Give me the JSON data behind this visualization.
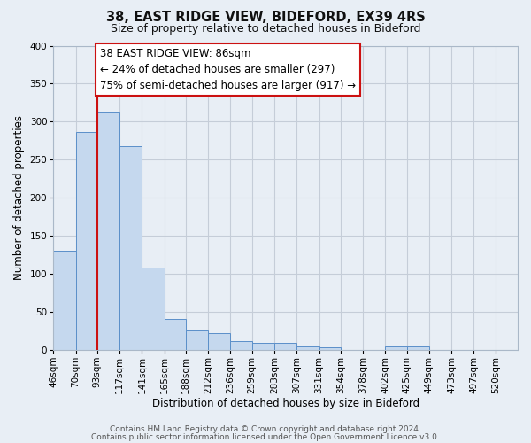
{
  "title": "38, EAST RIDGE VIEW, BIDEFORD, EX39 4RS",
  "subtitle": "Size of property relative to detached houses in Bideford",
  "xlabel": "Distribution of detached houses by size in Bideford",
  "ylabel": "Number of detached properties",
  "bar_labels": [
    "46sqm",
    "70sqm",
    "93sqm",
    "117sqm",
    "141sqm",
    "165sqm",
    "188sqm",
    "212sqm",
    "236sqm",
    "259sqm",
    "283sqm",
    "307sqm",
    "331sqm",
    "354sqm",
    "378sqm",
    "402sqm",
    "425sqm",
    "449sqm",
    "473sqm",
    "497sqm",
    "520sqm"
  ],
  "bar_values": [
    130,
    287,
    313,
    268,
    108,
    41,
    25,
    22,
    12,
    9,
    9,
    4,
    3,
    0,
    0,
    5,
    5,
    0,
    0,
    0,
    0
  ],
  "bar_color": "#c5d8ee",
  "bar_edge_color": "#5b8fc9",
  "ylim": [
    0,
    400
  ],
  "yticks": [
    0,
    50,
    100,
    150,
    200,
    250,
    300,
    350,
    400
  ],
  "x_positions": [
    46,
    70,
    93,
    117,
    141,
    165,
    188,
    212,
    236,
    259,
    283,
    307,
    331,
    354,
    378,
    402,
    425,
    449,
    473,
    497,
    520
  ],
  "annotation_title": "38 EAST RIDGE VIEW: 86sqm",
  "annotation_line1": "← 24% of detached houses are smaller (297)",
  "annotation_line2": "75% of semi-detached houses are larger (917) →",
  "footer1": "Contains HM Land Registry data © Crown copyright and database right 2024.",
  "footer2": "Contains public sector information licensed under the Open Government Licence v3.0.",
  "bg_color": "#e8eef5",
  "plot_bg_color": "#e8eef5",
  "grid_color": "#c5cdd8",
  "annotation_box_color": "#ffffff",
  "annotation_box_edge": "#cc1111",
  "red_line_color": "#cc1111",
  "title_fontsize": 10.5,
  "subtitle_fontsize": 9,
  "tick_fontsize": 7.5,
  "axis_label_fontsize": 8.5,
  "annotation_fontsize": 8.5,
  "footer_fontsize": 6.5
}
